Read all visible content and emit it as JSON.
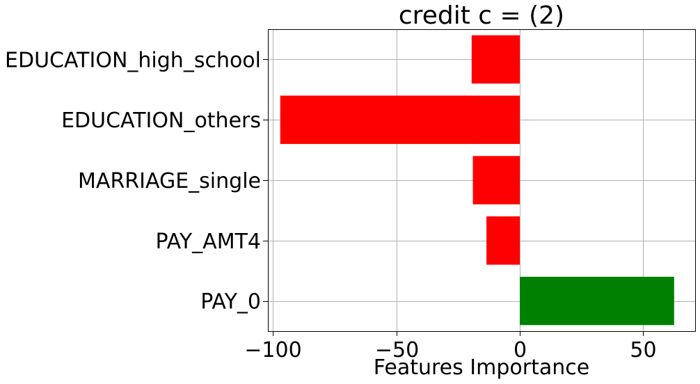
{
  "chart_data": {
    "type": "bar",
    "orientation": "horizontal",
    "title": "credit c = (2)",
    "xlabel": "Features Importance",
    "ylabel": "",
    "categories": [
      "EDUCATION_high_school",
      "EDUCATION_others",
      "MARRIAGE_single",
      "PAY_AMT4",
      "PAY_0"
    ],
    "values": [
      -19.5,
      -97,
      -19,
      -13.5,
      62.5
    ],
    "bar_colors": [
      "#ff0000",
      "#ff0000",
      "#ff0000",
      "#ff0000",
      "#008000"
    ],
    "negative_color": "#ff0000",
    "positive_color": "#008000",
    "xlim": [
      -102,
      71
    ],
    "xticks": [
      -100,
      -50,
      0,
      50
    ],
    "xtick_labels": [
      "−100",
      "−50",
      "0",
      "50"
    ],
    "grid": true
  }
}
